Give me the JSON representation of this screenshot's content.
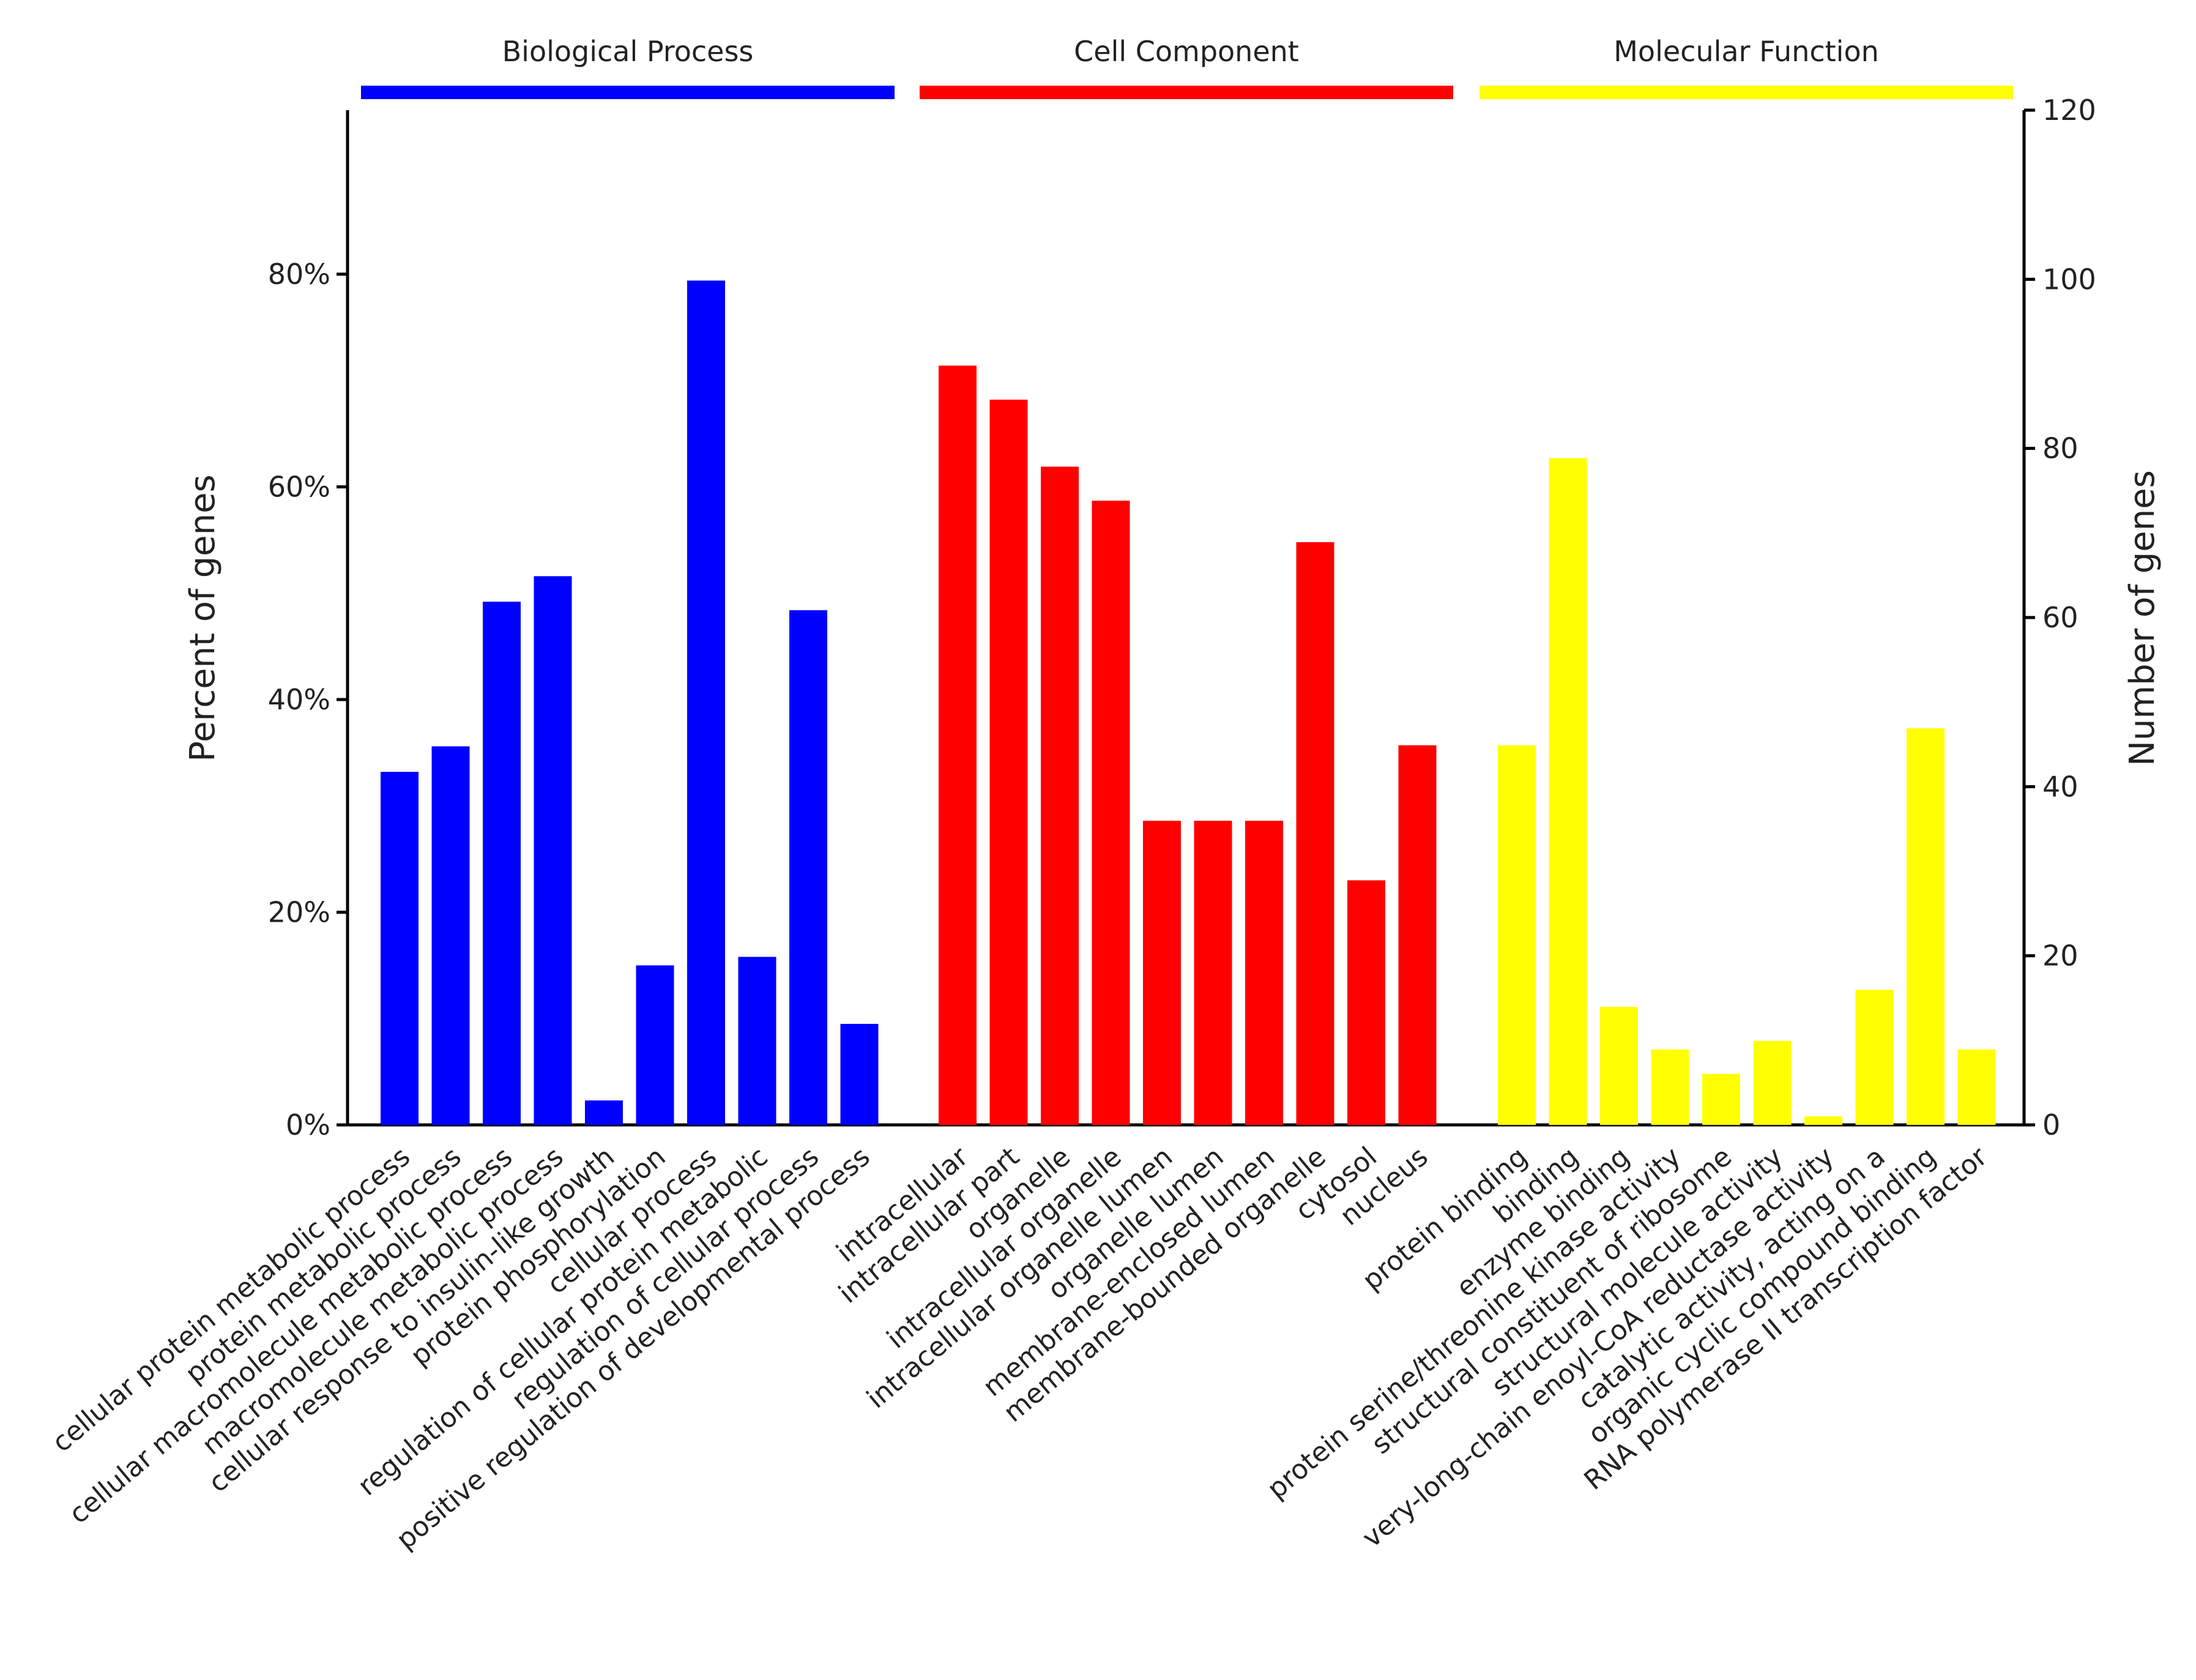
{
  "chart_data": {
    "type": "bar",
    "title": "",
    "ylabel_left": "Percent of genes",
    "ylabel_right": "Number of genes",
    "ylim_left_percent": [
      0,
      95
    ],
    "ylim_right_count": [
      0,
      120
    ],
    "left_ticks": [
      "0%",
      "20%",
      "40%",
      "60%",
      "80%"
    ],
    "left_tick_values": [
      0,
      20,
      40,
      60,
      80
    ],
    "right_ticks": [
      "0",
      "20",
      "40",
      "60",
      "80",
      "100",
      "120"
    ],
    "right_tick_values": [
      0,
      20,
      40,
      60,
      80,
      100,
      120
    ],
    "grid": false,
    "groups": [
      {
        "name": "Biological Process",
        "color": "#0000ff",
        "categories": [
          "cellular protein metabolic process",
          "protein metabolic process",
          "cellular macromolecule metabolic process",
          "macromolecule metabolic process",
          "cellular response to insulin-like growth",
          "protein phosphorylation",
          "cellular process",
          "regulation of cellular protein metabolic",
          "regulation of cellular process",
          "positive regulation of developmental process"
        ],
        "values_percent": [
          33.2,
          35.6,
          49.2,
          51.6,
          2.3,
          15.0,
          79.4,
          15.8,
          48.4,
          9.5
        ]
      },
      {
        "name": "Cell Component",
        "color": "#ff0000",
        "categories": [
          "intracellular",
          "intracellular part",
          "organelle",
          "intracellular organelle",
          "intracellular organelle lumen",
          "organelle lumen",
          "membrane-enclosed lumen",
          "membrane-bounded organelle",
          "cytosol",
          "nucleus"
        ],
        "values_percent": [
          71.4,
          68.2,
          61.9,
          58.7,
          28.6,
          28.6,
          28.6,
          54.8,
          23.0,
          35.7
        ]
      },
      {
        "name": "Molecular Function",
        "color": "#ffff00",
        "categories": [
          "protein binding",
          "binding",
          "enzyme binding",
          "protein serine/threonine kinase activity",
          "structural constituent of ribosome",
          "structural molecule activity",
          "very-long-chain enoyl-CoA reductase activity",
          "catalytic activity, acting on a",
          "organic cyclic compound binding",
          "RNA polymerase II transcription factor"
        ],
        "values_percent": [
          35.7,
          62.7,
          11.1,
          7.1,
          4.8,
          7.9,
          0.8,
          12.7,
          37.3,
          7.1
        ]
      }
    ]
  }
}
